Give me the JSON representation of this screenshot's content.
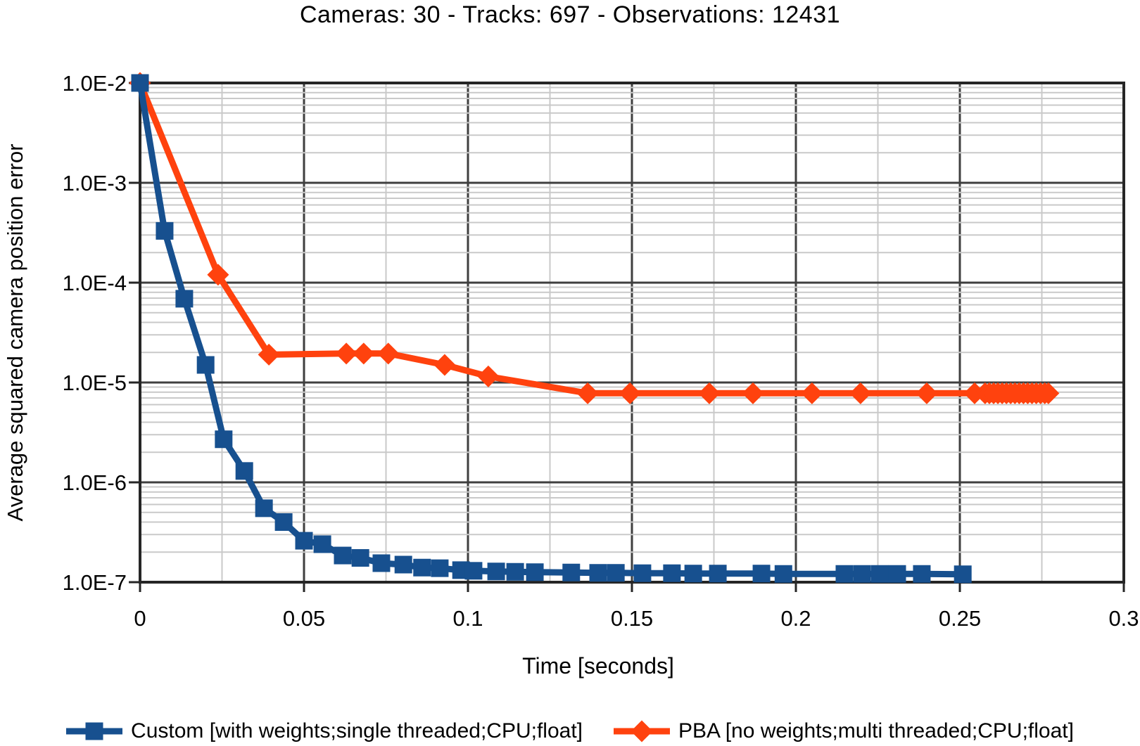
{
  "title": "Cameras: 30 - Tracks: 697 - Observations: 12431",
  "chart_data": {
    "type": "line",
    "title": "Cameras: 30 - Tracks: 697 - Observations: 12431",
    "xlabel": "Time [seconds]",
    "ylabel": "Average squared camera position error",
    "legend_position": "bottom",
    "grid": "major and minor, both axes",
    "x_axis": {
      "min": 0,
      "max": 0.3,
      "major_step": 0.05,
      "minor_step": 0.025,
      "tick_values": [
        0,
        0.05,
        0.1,
        0.15,
        0.2,
        0.25,
        0.3
      ],
      "tick_labels": [
        "0",
        "0.05",
        "0.1",
        "0.15",
        "0.2",
        "0.25",
        "0.3"
      ]
    },
    "y_axis": {
      "scale": "log",
      "min": 1e-07,
      "max": 0.01,
      "tick_values": [
        0.01,
        0.001,
        0.0001,
        1e-05,
        1e-06,
        1e-07
      ],
      "tick_labels": [
        "1.0E-2",
        "1.0E-3",
        "1.0E-4",
        "1.0E-5",
        "1.0E-6",
        "1.0E-7"
      ]
    },
    "style": {
      "minor_grid_color": "#c9c9c9",
      "major_grid_color": "#3f3f3f",
      "axis_color": "#262626",
      "text_color": "#000000"
    },
    "series": [
      {
        "name": "Custom [with weights;single threaded;CPU;float]",
        "color": "#17508f",
        "marker": "square",
        "points": [
          [
            0.0,
            0.01
          ],
          [
            0.0075,
            0.00033
          ],
          [
            0.0135,
            6.9e-05
          ],
          [
            0.02,
            1.5e-05
          ],
          [
            0.0255,
            2.7e-06
          ],
          [
            0.0318,
            1.3e-06
          ],
          [
            0.0378,
            5.5e-07
          ],
          [
            0.0438,
            4e-07
          ],
          [
            0.05,
            2.6e-07
          ],
          [
            0.0556,
            2.4e-07
          ],
          [
            0.0618,
            1.85e-07
          ],
          [
            0.0672,
            1.75e-07
          ],
          [
            0.0736,
            1.55e-07
          ],
          [
            0.0803,
            1.5e-07
          ],
          [
            0.086,
            1.4e-07
          ],
          [
            0.0914,
            1.38e-07
          ],
          [
            0.0979,
            1.32e-07
          ],
          [
            0.1017,
            1.3e-07
          ],
          [
            0.1086,
            1.28e-07
          ],
          [
            0.1144,
            1.27e-07
          ],
          [
            0.1204,
            1.26e-07
          ],
          [
            0.1315,
            1.25e-07
          ],
          [
            0.1397,
            1.24e-07
          ],
          [
            0.1451,
            1.24e-07
          ],
          [
            0.1532,
            1.23e-07
          ],
          [
            0.1622,
            1.23e-07
          ],
          [
            0.1687,
            1.22e-07
          ],
          [
            0.1762,
            1.22e-07
          ],
          [
            0.1895,
            1.22e-07
          ],
          [
            0.1962,
            1.21e-07
          ],
          [
            0.2148,
            1.21e-07
          ],
          [
            0.2202,
            1.21e-07
          ],
          [
            0.2256,
            1.21e-07
          ],
          [
            0.2309,
            1.21e-07
          ],
          [
            0.2384,
            1.21e-07
          ],
          [
            0.2509,
            1.2e-07
          ]
        ]
      },
      {
        "name": "PBA [no weights;multi threaded;CPU;float]",
        "color": "#ff420e",
        "marker": "diamond",
        "points": [
          [
            0.0,
            0.01
          ],
          [
            0.0238,
            0.00012
          ],
          [
            0.0393,
            1.9e-05
          ],
          [
            0.0629,
            1.95e-05
          ],
          [
            0.0682,
            1.95e-05
          ],
          [
            0.0757,
            1.95e-05
          ],
          [
            0.0929,
            1.5e-05
          ],
          [
            0.1062,
            1.15e-05
          ],
          [
            0.1365,
            7.8e-06
          ],
          [
            0.1494,
            7.8e-06
          ],
          [
            0.1736,
            7.8e-06
          ],
          [
            0.1869,
            7.8e-06
          ],
          [
            0.2049,
            7.8e-06
          ],
          [
            0.2197,
            7.8e-06
          ],
          [
            0.2399,
            7.8e-06
          ],
          [
            0.2545,
            7.8e-06
          ],
          [
            0.2577,
            7.8e-06
          ],
          [
            0.259,
            7.8e-06
          ],
          [
            0.2603,
            7.8e-06
          ],
          [
            0.2616,
            7.8e-06
          ],
          [
            0.2629,
            7.8e-06
          ],
          [
            0.2642,
            7.8e-06
          ],
          [
            0.2655,
            7.8e-06
          ],
          [
            0.2668,
            7.8e-06
          ],
          [
            0.2681,
            7.8e-06
          ],
          [
            0.2694,
            7.8e-06
          ],
          [
            0.2707,
            7.8e-06
          ],
          [
            0.272,
            7.8e-06
          ],
          [
            0.2733,
            7.8e-06
          ],
          [
            0.2746,
            7.8e-06
          ],
          [
            0.2759,
            7.8e-06
          ],
          [
            0.277,
            7.8e-06
          ]
        ]
      }
    ]
  }
}
